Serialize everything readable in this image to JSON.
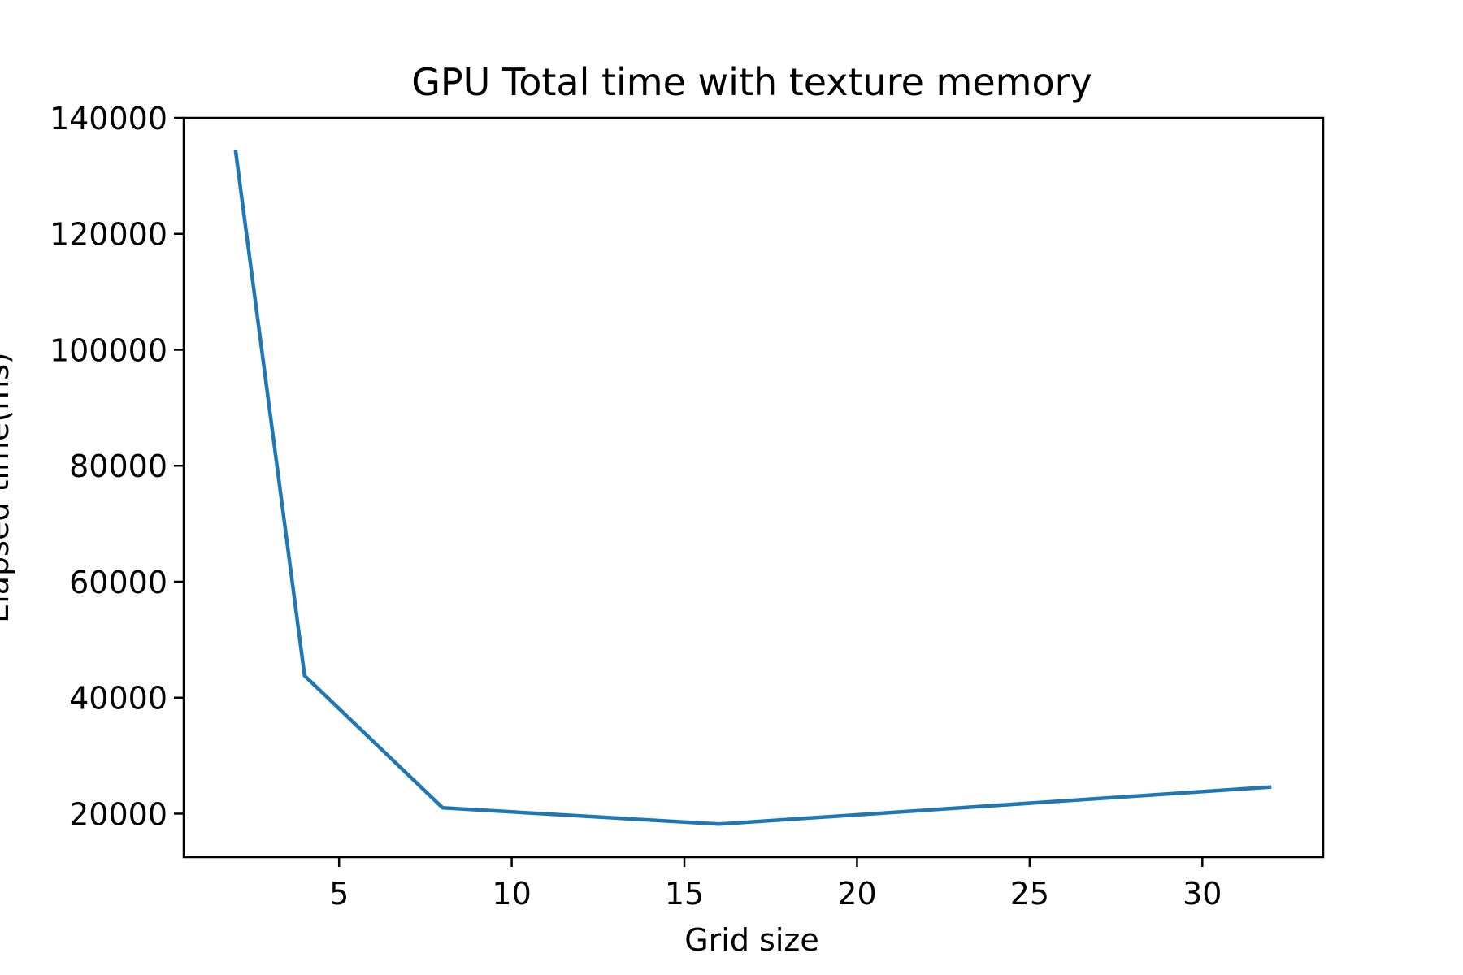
{
  "chart_data": {
    "type": "line",
    "title": "GPU Total time with texture memory",
    "xlabel": "Grid size",
    "ylabel": "Elapsed time(ms)",
    "xlim": [
      0.5,
      33.5
    ],
    "ylim": [
      12500,
      140000
    ],
    "xticks": [
      5,
      10,
      15,
      20,
      25,
      30
    ],
    "yticks": [
      20000,
      40000,
      60000,
      80000,
      100000,
      120000,
      140000
    ],
    "grid": false,
    "series": [
      {
        "x": [
          2,
          4,
          8,
          16,
          32
        ],
        "y": [
          134500,
          43800,
          21000,
          18200,
          24600
        ],
        "color": "#1f77b4"
      }
    ]
  }
}
